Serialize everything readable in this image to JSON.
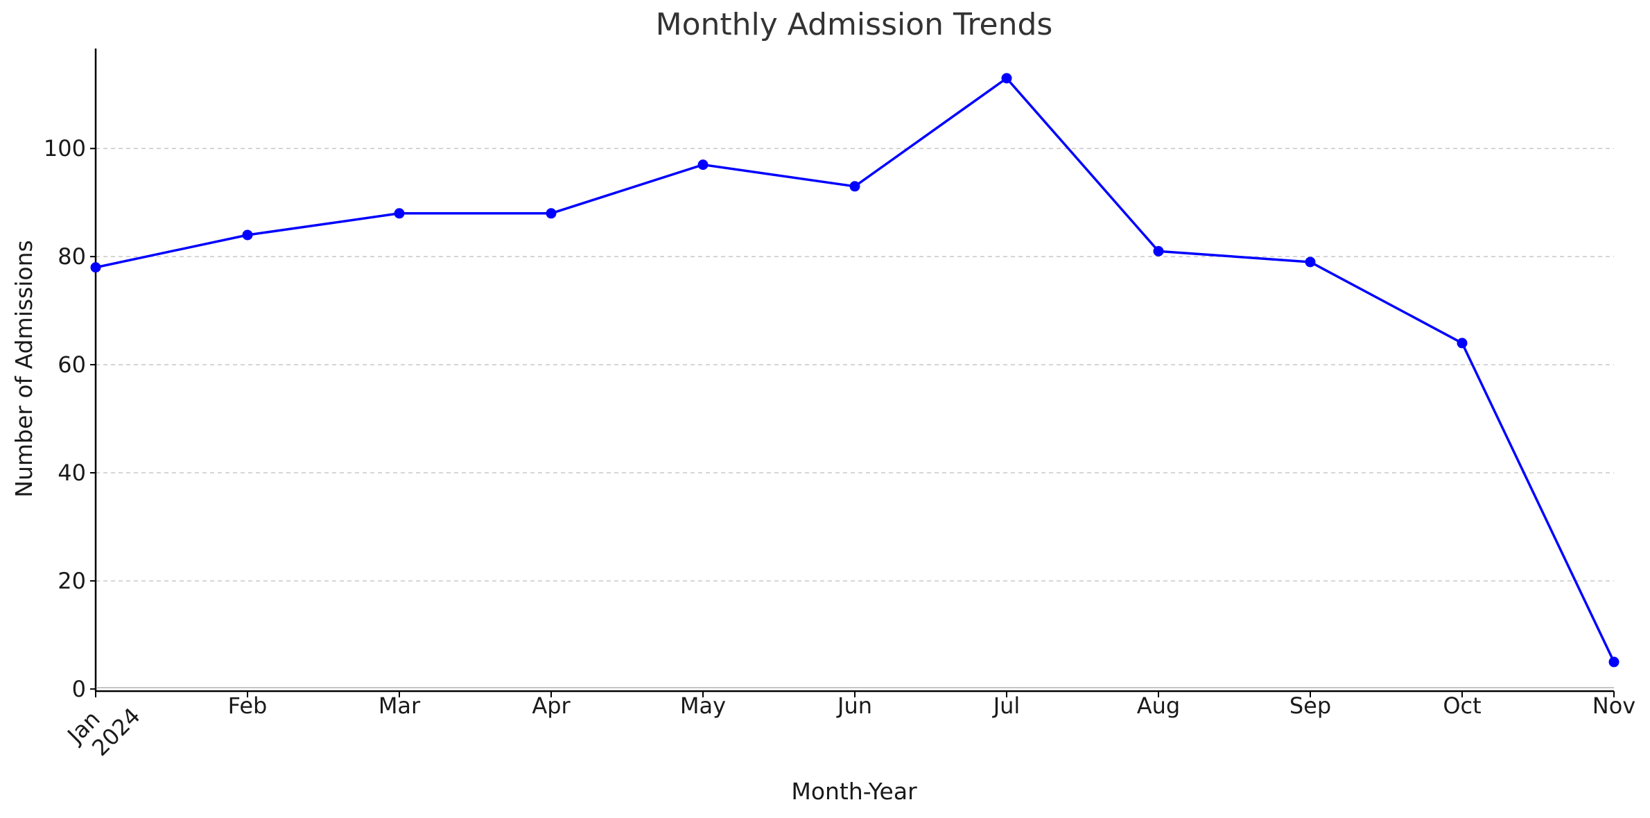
{
  "chart_data": {
    "type": "line",
    "title": "Monthly Admission Trends",
    "xlabel": "Month-Year",
    "ylabel": "Number of Admissions",
    "categories": [
      "Jan\n2024",
      "Feb",
      "Mar",
      "Apr",
      "May",
      "Jun",
      "Jul",
      "Aug",
      "Sep",
      "Oct",
      "Nov"
    ],
    "series": [
      {
        "values": [
          78,
          84,
          88,
          88,
          97,
          93,
          113,
          81,
          79,
          64,
          5
        ],
        "color": "#0000ff"
      }
    ],
    "ylim": [
      -0.4,
      118.5
    ],
    "yticks": [
      0,
      20,
      40,
      60,
      80,
      100
    ],
    "grid": "y-dashed",
    "legend": "none"
  }
}
